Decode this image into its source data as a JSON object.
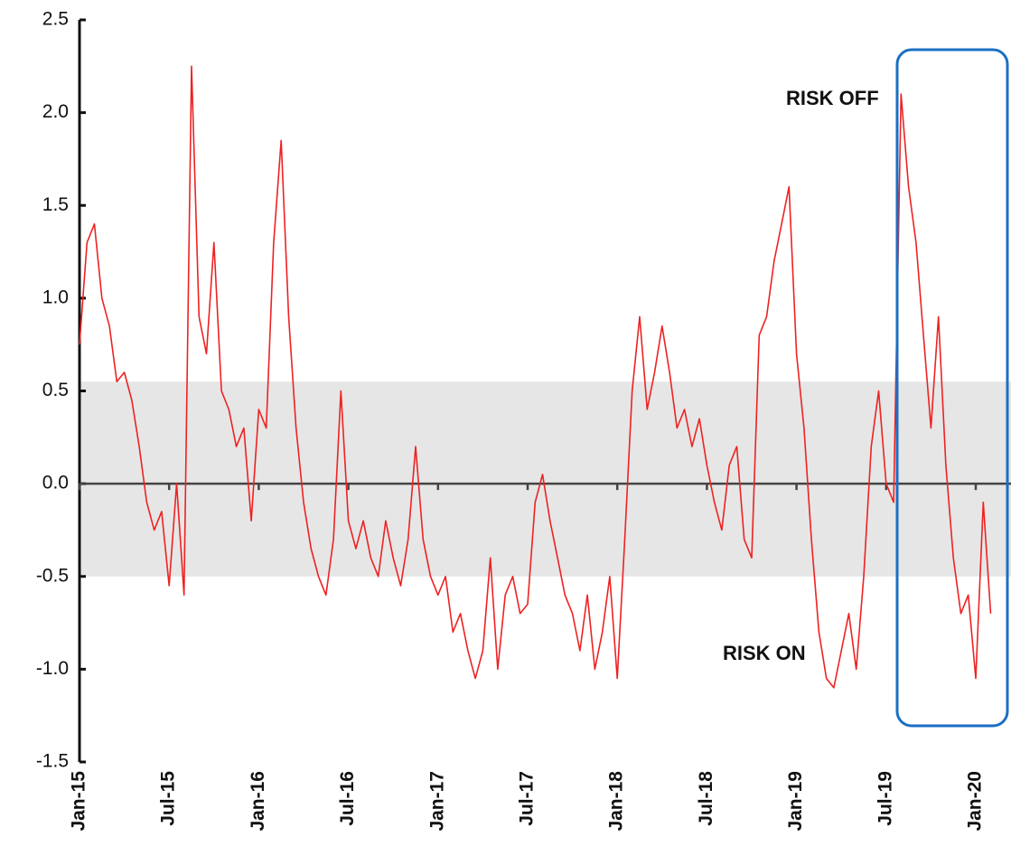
{
  "chart_data": {
    "type": "line",
    "annotations": [
      "RISK OFF",
      "RISK ON"
    ],
    "categories": [
      "Jan-15",
      null,
      null,
      null,
      null,
      null,
      null,
      null,
      null,
      null,
      null,
      null,
      "Jul-15",
      null,
      null,
      null,
      null,
      null,
      null,
      null,
      null,
      null,
      null,
      null,
      "Jan-16",
      null,
      null,
      null,
      null,
      null,
      null,
      null,
      null,
      null,
      null,
      null,
      "Jul-16",
      null,
      null,
      null,
      null,
      null,
      null,
      null,
      null,
      null,
      null,
      null,
      "Jan-17",
      null,
      null,
      null,
      null,
      null,
      null,
      null,
      null,
      null,
      null,
      null,
      "Jul-17",
      null,
      null,
      null,
      null,
      null,
      null,
      null,
      null,
      null,
      null,
      null,
      "Jan-18",
      null,
      null,
      null,
      null,
      null,
      null,
      null,
      null,
      null,
      null,
      null,
      "Jul-18",
      null,
      null,
      null,
      null,
      null,
      null,
      null,
      null,
      null,
      null,
      null,
      "Jan-19",
      null,
      null,
      null,
      null,
      null,
      null,
      null,
      null,
      null,
      null,
      null,
      "Jul-19",
      null,
      null,
      null,
      null,
      null,
      null,
      null,
      null,
      null,
      null,
      null,
      "Jan-20",
      null,
      null
    ],
    "values": [
      0.75,
      1.3,
      1.4,
      1.0,
      0.85,
      0.55,
      0.6,
      0.45,
      0.2,
      -0.1,
      -0.25,
      -0.15,
      -0.55,
      0.0,
      -0.6,
      2.25,
      0.9,
      0.7,
      1.3,
      0.5,
      0.4,
      0.2,
      0.3,
      -0.2,
      0.4,
      0.3,
      1.3,
      1.85,
      0.9,
      0.3,
      -0.1,
      -0.35,
      -0.5,
      -0.6,
      -0.3,
      0.5,
      -0.2,
      -0.35,
      -0.2,
      -0.4,
      -0.5,
      -0.2,
      -0.4,
      -0.55,
      -0.3,
      0.2,
      -0.3,
      -0.5,
      -0.6,
      -0.5,
      -0.8,
      -0.7,
      -0.9,
      -1.05,
      -0.9,
      -0.4,
      -1.0,
      -0.6,
      -0.5,
      -0.7,
      -0.65,
      -0.1,
      0.05,
      -0.2,
      -0.4,
      -0.6,
      -0.7,
      -0.9,
      -0.6,
      -1.0,
      -0.8,
      -0.5,
      -1.05,
      -0.3,
      0.5,
      0.9,
      0.4,
      0.6,
      0.85,
      0.6,
      0.3,
      0.4,
      0.2,
      0.35,
      0.1,
      -0.1,
      -0.25,
      0.1,
      0.2,
      -0.3,
      -0.4,
      0.8,
      0.9,
      1.2,
      1.4,
      1.6,
      0.7,
      0.3,
      -0.3,
      -0.8,
      -1.05,
      -1.1,
      -0.9,
      -0.7,
      -1.0,
      -0.5,
      0.2,
      0.5,
      0.0,
      -0.1,
      2.1,
      1.6,
      1.3,
      0.8,
      0.3,
      0.9,
      0.1,
      -0.4,
      -0.7,
      -0.6,
      -1.05,
      -0.1,
      -0.7
    ],
    "color": "#ee2222",
    "band": [
      -0.5,
      0.55
    ],
    "band_color": "#e6e6e6",
    "ylim": [
      -1.5,
      2.5
    ],
    "yticks": [
      -1.5,
      {
        "value": -1,
        "label": "-1.0"
      },
      -0.5,
      {
        "value": 0,
        "label": "0.0"
      },
      0.5,
      {
        "value": 1,
        "label": "1.0"
      },
      1.5,
      {
        "value": 2,
        "label": "2.0"
      },
      2.5
    ]
  }
}
